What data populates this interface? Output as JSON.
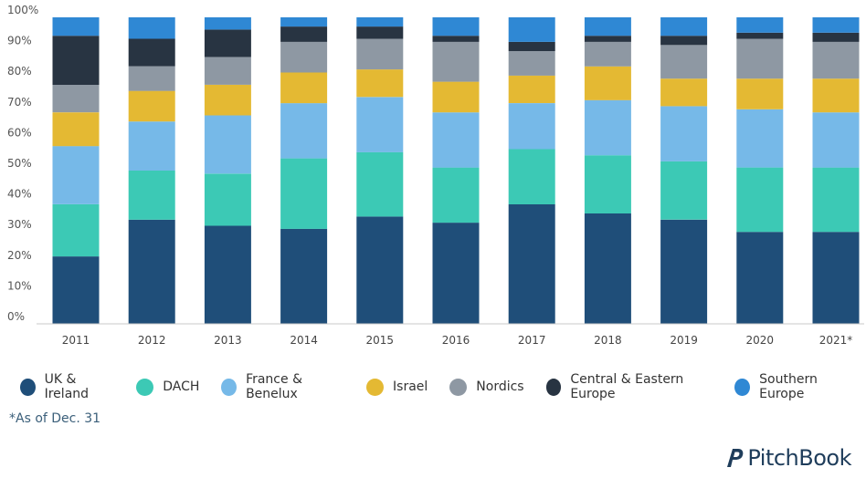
{
  "chart_data": {
    "type": "bar",
    "stacked": true,
    "categories": [
      "2011",
      "2012",
      "2013",
      "2014",
      "2015",
      "2016",
      "2017",
      "2018",
      "2019",
      "2020",
      "2021*"
    ],
    "yticks": [
      "0%",
      "10%",
      "20%",
      "30%",
      "40%",
      "50%",
      "60%",
      "70%",
      "80%",
      "90%",
      "100%"
    ],
    "ylim": [
      0,
      100
    ],
    "grid": false,
    "legend_position": "bottom",
    "series": [
      {
        "name": "UK & Ireland",
        "color": "#1f4e79",
        "values": [
          22,
          34,
          32,
          31,
          35,
          33,
          39,
          36,
          34,
          30,
          30
        ]
      },
      {
        "name": "DACH",
        "color": "#3cc9b5",
        "values": [
          17,
          16,
          17,
          23,
          21,
          18,
          18,
          19,
          19,
          21,
          21
        ]
      },
      {
        "name": "France & Benelux",
        "color": "#76b9e8",
        "values": [
          19,
          16,
          19,
          18,
          18,
          18,
          15,
          18,
          18,
          19,
          18
        ]
      },
      {
        "name": "Israel",
        "color": "#e4b933",
        "values": [
          11,
          10,
          10,
          10,
          9,
          10,
          9,
          11,
          9,
          10,
          11
        ]
      },
      {
        "name": "Nordics",
        "color": "#8e98a3",
        "values": [
          9,
          8,
          9,
          10,
          10,
          13,
          8,
          8,
          11,
          13,
          12
        ]
      },
      {
        "name": "Central & Eastern Europe",
        "color": "#283442",
        "values": [
          16,
          9,
          9,
          5,
          4,
          2,
          3,
          2,
          3,
          2,
          3
        ]
      },
      {
        "name": "Southern Europe",
        "color": "#2f88d4",
        "values": [
          6,
          7,
          4,
          3,
          3,
          6,
          8,
          6,
          6,
          5,
          5
        ]
      }
    ]
  },
  "footnote": "*As of Dec. 31",
  "logo_text": "PitchBook"
}
